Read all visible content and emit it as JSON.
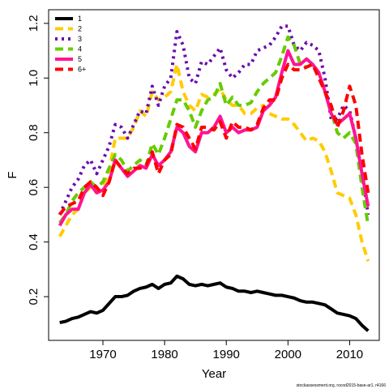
{
  "chart_data": {
    "type": "line",
    "xlabel": "Year",
    "ylabel": "F",
    "footnote": "stockassessment.org, rocod2015-base-ar1, r4166",
    "x": [
      1963,
      1964,
      1965,
      1966,
      1967,
      1968,
      1969,
      1970,
      1971,
      1972,
      1973,
      1974,
      1975,
      1976,
      1977,
      1978,
      1979,
      1980,
      1981,
      1982,
      1983,
      1984,
      1985,
      1986,
      1987,
      1988,
      1989,
      1990,
      1991,
      1992,
      1993,
      1994,
      1995,
      1996,
      1997,
      1998,
      1999,
      2000,
      2001,
      2002,
      2003,
      2004,
      2005,
      2006,
      2007,
      2008,
      2009,
      2010,
      2011,
      2012,
      2013
    ],
    "series": [
      {
        "name": "1",
        "color": "#000000",
        "linestyle": "solid",
        "values": [
          0.105,
          0.11,
          0.12,
          0.125,
          0.135,
          0.145,
          0.14,
          0.15,
          0.175,
          0.2,
          0.2,
          0.205,
          0.22,
          0.23,
          0.235,
          0.245,
          0.23,
          0.245,
          0.25,
          0.275,
          0.265,
          0.245,
          0.24,
          0.245,
          0.24,
          0.245,
          0.25,
          0.235,
          0.23,
          0.22,
          0.22,
          0.215,
          0.22,
          0.215,
          0.21,
          0.205,
          0.205,
          0.2,
          0.195,
          0.185,
          0.18,
          0.18,
          0.175,
          0.17,
          0.155,
          0.14,
          0.135,
          0.13,
          0.12,
          0.095,
          0.075
        ]
      },
      {
        "name": "2",
        "color": "#FFCC00",
        "linestyle": "dashed",
        "values": [
          0.42,
          0.46,
          0.5,
          0.52,
          0.58,
          0.6,
          0.58,
          0.6,
          0.66,
          0.78,
          0.78,
          0.78,
          0.82,
          0.88,
          0.86,
          0.95,
          0.92,
          0.93,
          0.95,
          1.05,
          0.95,
          0.9,
          0.88,
          0.94,
          0.93,
          0.94,
          0.96,
          0.92,
          0.9,
          0.9,
          0.87,
          0.87,
          0.89,
          0.9,
          0.87,
          0.86,
          0.85,
          0.85,
          0.83,
          0.8,
          0.77,
          0.78,
          0.77,
          0.73,
          0.66,
          0.58,
          0.57,
          0.56,
          0.5,
          0.4,
          0.33
        ]
      },
      {
        "name": "3",
        "color": "#6A0DAD",
        "linestyle": "dotted",
        "values": [
          0.5,
          0.55,
          0.6,
          0.63,
          0.68,
          0.7,
          0.65,
          0.7,
          0.75,
          0.83,
          0.82,
          0.78,
          0.83,
          0.88,
          0.87,
          0.97,
          0.9,
          0.97,
          1.0,
          1.17,
          1.12,
          1.0,
          0.98,
          1.06,
          1.05,
          1.08,
          1.11,
          1.03,
          1.0,
          1.02,
          1.05,
          1.05,
          1.1,
          1.11,
          1.12,
          1.15,
          1.19,
          1.19,
          1.12,
          1.1,
          1.13,
          1.12,
          1.1,
          1.0,
          0.85,
          0.85,
          0.9,
          0.88,
          0.78,
          0.65,
          0.5
        ]
      },
      {
        "name": "4",
        "color": "#66CC00",
        "linestyle": "dashed",
        "values": [
          0.47,
          0.5,
          0.55,
          0.58,
          0.6,
          0.62,
          0.6,
          0.62,
          0.67,
          0.72,
          0.7,
          0.66,
          0.68,
          0.7,
          0.68,
          0.76,
          0.72,
          0.78,
          0.85,
          0.92,
          0.92,
          0.88,
          0.82,
          0.88,
          0.92,
          0.93,
          0.98,
          0.9,
          0.93,
          0.9,
          0.9,
          0.91,
          0.95,
          0.98,
          1.0,
          1.02,
          1.08,
          1.15,
          1.12,
          1.05,
          1.04,
          1.05,
          1.02,
          0.95,
          0.88,
          0.8,
          0.78,
          0.8,
          0.76,
          0.6,
          0.46
        ]
      },
      {
        "name": "5",
        "color": "#FF1493",
        "linestyle": "solid",
        "values": [
          0.46,
          0.5,
          0.52,
          0.52,
          0.58,
          0.61,
          0.58,
          0.59,
          0.62,
          0.7,
          0.67,
          0.64,
          0.66,
          0.68,
          0.67,
          0.72,
          0.68,
          0.7,
          0.73,
          0.82,
          0.8,
          0.75,
          0.73,
          0.8,
          0.8,
          0.82,
          0.86,
          0.8,
          0.82,
          0.8,
          0.81,
          0.81,
          0.82,
          0.88,
          0.9,
          0.93,
          1.02,
          1.1,
          1.05,
          1.05,
          1.07,
          1.05,
          1.02,
          0.95,
          0.87,
          0.83,
          0.85,
          0.87,
          0.78,
          0.65,
          0.53
        ]
      },
      {
        "name": "6+",
        "color": "#FF0000",
        "linestyle": "dashed",
        "values": [
          0.5,
          0.53,
          0.54,
          0.55,
          0.6,
          0.62,
          0.6,
          0.57,
          0.62,
          0.7,
          0.67,
          0.65,
          0.67,
          0.67,
          0.68,
          0.73,
          0.65,
          0.7,
          0.72,
          0.83,
          0.82,
          0.78,
          0.74,
          0.82,
          0.82,
          0.81,
          0.84,
          0.78,
          0.84,
          0.82,
          0.82,
          0.81,
          0.83,
          0.89,
          0.92,
          0.92,
          1.0,
          1.05,
          1.03,
          1.03,
          1.04,
          1.05,
          1.0,
          0.95,
          0.9,
          0.82,
          0.88,
          0.97,
          0.9,
          0.72,
          0.58
        ]
      }
    ],
    "xlim": [
      1961.2,
      2014.8
    ],
    "ylim": [
      0.04,
      1.25
    ],
    "xticks": [
      1970,
      1980,
      1990,
      2000,
      2010
    ],
    "yticks": [
      0.2,
      0.4,
      0.6,
      0.8,
      {
        "value": 1,
        "label": "1.0"
      },
      1.2
    ],
    "legend": "top-left"
  }
}
